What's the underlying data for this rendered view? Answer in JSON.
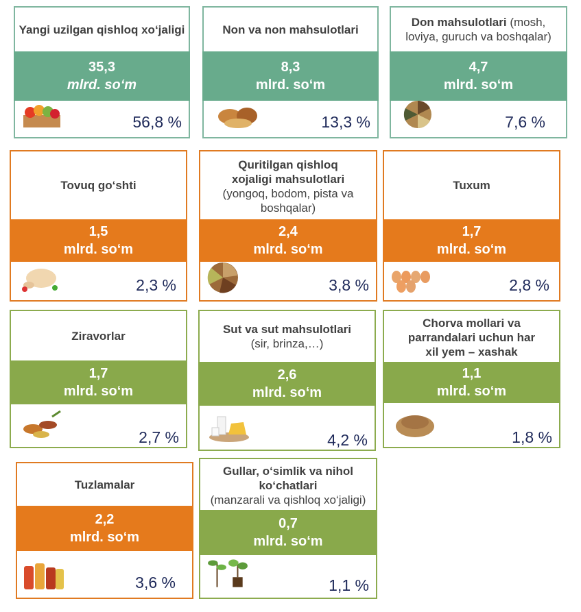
{
  "cards": [
    {
      "title": "Yangi uzilgan qishloq xo‘jaligi",
      "subtitle": "",
      "value": "35,3",
      "unit": "mlrd. so‘m",
      "percent": "56,8 %",
      "icon": "fruit-crate-icon"
    },
    {
      "title": "Non va non mahsulotlari",
      "subtitle": "",
      "value": "8,3",
      "unit": "mlrd. so‘m",
      "percent": "13,3 %",
      "icon": "bread-icon"
    },
    {
      "title": "Don mahsulotlari",
      "subtitle": "(mosh, loviya, guruch va boshqalar)",
      "value": "4,7",
      "unit": "mlrd. so‘m",
      "percent": "7,6 %",
      "icon": "grains-icon"
    },
    {
      "title": "Tovuq go‘shti",
      "subtitle": "",
      "value": "1,5",
      "unit": "mlrd. so‘m",
      "percent": "2,3 %",
      "icon": "chicken-icon"
    },
    {
      "title": "Quritilgan qishloq xojaligi mahsulotlari",
      "subtitle": "(yongoq, bodom, pista va boshqalar)",
      "value": "2,4",
      "unit": "mlrd. so‘m",
      "percent": "3,8 %",
      "icon": "nuts-icon"
    },
    {
      "title": "Tuxum",
      "subtitle": "",
      "value": "1,7",
      "unit": "mlrd. so‘m",
      "percent": "2,8 %",
      "icon": "eggs-icon"
    },
    {
      "title": "Ziravorlar",
      "subtitle": "",
      "value": "1,7",
      "unit": "mlrd. so‘m",
      "percent": "2,7 %",
      "icon": "spices-icon"
    },
    {
      "title": "Sut va sut mahsulotlari",
      "subtitle": "(sir, brinza,…)",
      "value": "2,6",
      "unit": "mlrd. so‘m",
      "percent": "4,2 %",
      "icon": "dairy-icon"
    },
    {
      "title": "Chorva mollari va parrandalari uchun har xil yem – xashak",
      "subtitle": "",
      "value": "1,1",
      "unit": "mlrd. so‘m",
      "percent": "1,8 %",
      "icon": "feed-pellets-icon"
    },
    {
      "title": "Tuzlamalar",
      "subtitle": "",
      "value": "2,2",
      "unit": "mlrd. so‘m",
      "percent": "3,6 %",
      "icon": "pickles-icon"
    },
    {
      "title": "Gullar, o‘simlik va nihol ko‘chatlari",
      "subtitle": "(manzarali va qishloq xo‘jaligi)",
      "value": "0,7",
      "unit": "mlrd. so‘m",
      "percent": "1,1 %",
      "icon": "seedlings-icon"
    }
  ],
  "colors": {
    "teal": "#68ab8c",
    "orange": "#e57a1c",
    "olive": "#89a94b",
    "percent_text": "#1f2a5a"
  }
}
